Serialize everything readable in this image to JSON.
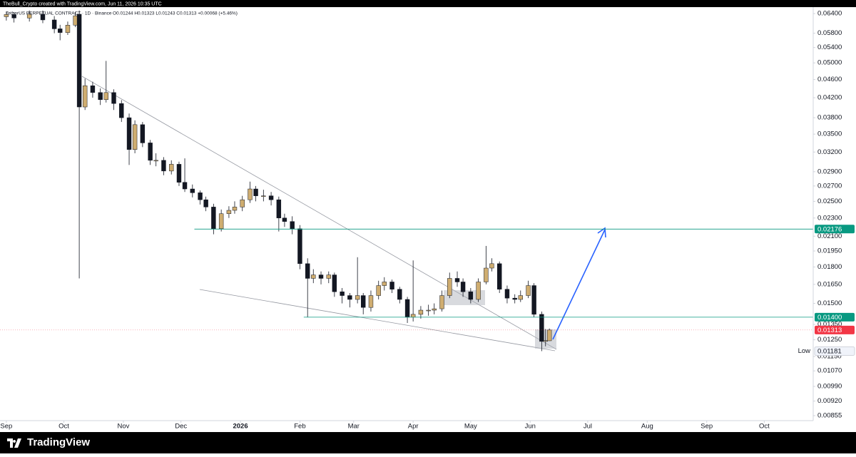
{
  "header": {
    "credit": "TheBull_Crypto created with TradingView.com, Jun 11, 2026 10:35 UTC"
  },
  "footer": {
    "brand": "TradingView"
  },
  "chart_data": {
    "type": "candlestick",
    "title": "TetherUS PERPETUAL CONTRACT · 1D · Binance",
    "legend_values": "O0.01244 H0.01323 L0.01243 C0.01313 +0.00068 (+5.46%)",
    "up_color": "#cfad70",
    "down_color": "#131722",
    "log_scale": true,
    "grid": false,
    "x": [
      0,
      4,
      12,
      19,
      25,
      28,
      32,
      36,
      38,
      41,
      45,
      49,
      52,
      56,
      60,
      64,
      67,
      71,
      75,
      78,
      82,
      86,
      90,
      93,
      97,
      101,
      104,
      108,
      112,
      116,
      119,
      123,
      127,
      130,
      134,
      138,
      142,
      145,
      149,
      153,
      157,
      160,
      164,
      168,
      171,
      175,
      179,
      183,
      186,
      190,
      194,
      197,
      201,
      205,
      209,
      212,
      216,
      220,
      223,
      227,
      231,
      235,
      238,
      242,
      246,
      250,
      253,
      257,
      261,
      265,
      268,
      272,
      275,
      279,
      281,
      283
    ],
    "open": [
      0.063,
      0.0637,
      0.0626,
      0.0638,
      0.062,
      0.0593,
      0.0582,
      0.0604,
      0.0638,
      0.0401,
      0.0446,
      0.0431,
      0.0416,
      0.0431,
      0.0408,
      0.038,
      0.0324,
      0.0367,
      0.0335,
      0.0307,
      0.0307,
      0.0291,
      0.0301,
      0.0275,
      0.0266,
      0.0261,
      0.0252,
      0.0243,
      0.0218,
      0.0235,
      0.0239,
      0.0243,
      0.0252,
      0.0266,
      0.0257,
      0.0257,
      0.0252,
      0.023,
      0.0226,
      0.0218,
      0.0183,
      0.017,
      0.0173,
      0.017,
      0.0173,
      0.0159,
      0.0156,
      0.0153,
      0.0156,
      0.0147,
      0.0156,
      0.0164,
      0.0167,
      0.0161,
      0.0153,
      0.014,
      0.0142,
      0.0145,
      0.0145,
      0.0146,
      0.0156,
      0.017,
      0.0167,
      0.0159,
      0.0153,
      0.0167,
      0.0179,
      0.0183,
      0.0161,
      0.0154,
      0.0153,
      0.0156,
      0.0164,
      0.0142,
      0.0124,
      0.01244
    ],
    "high": [
      0.0645,
      0.0645,
      0.065,
      0.065,
      0.0632,
      0.0605,
      0.0615,
      0.0645,
      0.065,
      0.0462,
      0.0455,
      0.044,
      0.0505,
      0.0438,
      0.0415,
      0.0388,
      0.0375,
      0.0372,
      0.034,
      0.0318,
      0.0312,
      0.0307,
      0.0305,
      0.031,
      0.0272,
      0.0264,
      0.0256,
      0.0247,
      0.024,
      0.0244,
      0.025,
      0.0257,
      0.0276,
      0.027,
      0.0265,
      0.0262,
      0.0256,
      0.0235,
      0.0232,
      0.0222,
      0.0188,
      0.0178,
      0.0176,
      0.0176,
      0.0175,
      0.0162,
      0.0158,
      0.0189,
      0.0158,
      0.016,
      0.0168,
      0.0171,
      0.0169,
      0.0163,
      0.0155,
      0.0186,
      0.0148,
      0.0149,
      0.015,
      0.016,
      0.0175,
      0.0176,
      0.017,
      0.0162,
      0.017,
      0.02,
      0.0188,
      0.0185,
      0.0164,
      0.0157,
      0.016,
      0.0168,
      0.0166,
      0.0144,
      0.0132,
      0.01323
    ],
    "low": [
      0.0618,
      0.0612,
      0.0615,
      0.061,
      0.058,
      0.056,
      0.0575,
      0.0598,
      0.017,
      0.0395,
      0.042,
      0.0405,
      0.041,
      0.0395,
      0.0372,
      0.03,
      0.0318,
      0.0328,
      0.03,
      0.0298,
      0.0285,
      0.0286,
      0.027,
      0.0262,
      0.0255,
      0.0246,
      0.0238,
      0.0212,
      0.0215,
      0.023,
      0.0235,
      0.0238,
      0.0248,
      0.025,
      0.025,
      0.0245,
      0.0215,
      0.022,
      0.0212,
      0.0178,
      0.014,
      0.0166,
      0.0165,
      0.0166,
      0.0155,
      0.015,
      0.0147,
      0.015,
      0.0142,
      0.0144,
      0.0153,
      0.016,
      0.0158,
      0.015,
      0.0136,
      0.0137,
      0.0139,
      0.0141,
      0.0142,
      0.0144,
      0.0154,
      0.0163,
      0.0155,
      0.015,
      0.0151,
      0.0165,
      0.0176,
      0.0158,
      0.015,
      0.015,
      0.0151,
      0.0154,
      0.014,
      0.01181,
      0.0121,
      0.01243
    ],
    "close": [
      0.0637,
      0.0626,
      0.0638,
      0.062,
      0.0593,
      0.0582,
      0.0604,
      0.0633,
      0.0401,
      0.0446,
      0.0431,
      0.0416,
      0.0431,
      0.0408,
      0.038,
      0.0324,
      0.0367,
      0.0335,
      0.0307,
      0.0307,
      0.0291,
      0.0301,
      0.0275,
      0.0266,
      0.0261,
      0.0252,
      0.0243,
      0.0218,
      0.0235,
      0.0239,
      0.0243,
      0.0252,
      0.0266,
      0.0257,
      0.0257,
      0.0252,
      0.023,
      0.0226,
      0.0218,
      0.0183,
      0.017,
      0.0173,
      0.017,
      0.0173,
      0.0159,
      0.0156,
      0.0153,
      0.0156,
      0.0147,
      0.0156,
      0.0164,
      0.0167,
      0.0161,
      0.0153,
      0.014,
      0.0142,
      0.0145,
      0.0145,
      0.0146,
      0.0156,
      0.017,
      0.0167,
      0.0159,
      0.0153,
      0.0167,
      0.0179,
      0.0183,
      0.0161,
      0.0154,
      0.0153,
      0.0156,
      0.0164,
      0.0142,
      0.0124,
      0.01245,
      0.01313
    ],
    "xlim": [
      -3.3,
      420.5
    ],
    "xticks": [
      {
        "value": 0,
        "label": "Sep"
      },
      {
        "value": 30,
        "label": "Oct"
      },
      {
        "value": 61,
        "label": "Nov"
      },
      {
        "value": 91,
        "label": "Dec"
      },
      {
        "value": 122,
        "label": "2026"
      },
      {
        "value": 153,
        "label": "Feb"
      },
      {
        "value": 181,
        "label": "Mar"
      },
      {
        "value": 212,
        "label": "Apr"
      },
      {
        "value": 242,
        "label": "May"
      },
      {
        "value": 273,
        "label": "Jun"
      },
      {
        "value": 303,
        "label": "Jul"
      },
      {
        "value": 334,
        "label": "Aug"
      },
      {
        "value": 365,
        "label": "Sep"
      },
      {
        "value": 395,
        "label": "Oct"
      }
    ],
    "ylim": [
      0.00834,
      0.0661
    ],
    "yticks": [
      {
        "value": 0.064,
        "label": "0.06400"
      },
      {
        "value": 0.058,
        "label": "0.05800"
      },
      {
        "value": 0.054,
        "label": "0.05400"
      },
      {
        "value": 0.05,
        "label": "0.05000"
      },
      {
        "value": 0.046,
        "label": "0.04600"
      },
      {
        "value": 0.042,
        "label": "0.04200"
      },
      {
        "value": 0.038,
        "label": "0.03800"
      },
      {
        "value": 0.035,
        "label": "0.03500"
      },
      {
        "value": 0.032,
        "label": "0.03200"
      },
      {
        "value": 0.029,
        "label": "0.02900"
      },
      {
        "value": 0.027,
        "label": "0.02700"
      },
      {
        "value": 0.025,
        "label": "0.02500"
      },
      {
        "value": 0.023,
        "label": "0.02300"
      },
      {
        "value": 0.021,
        "label": "0.02100"
      },
      {
        "value": 0.0195,
        "label": "0.01950"
      },
      {
        "value": 0.018,
        "label": "0.01800"
      },
      {
        "value": 0.0165,
        "label": "0.01650"
      },
      {
        "value": 0.015,
        "label": "0.01500"
      },
      {
        "value": 0.0135,
        "label": "0.01350"
      },
      {
        "value": 0.0125,
        "label": "0.01250"
      },
      {
        "value": 0.0115,
        "label": "0.01150"
      },
      {
        "value": 0.0107,
        "label": "0.01070"
      },
      {
        "value": 0.0099,
        "label": "0.00990"
      },
      {
        "value": 0.0092,
        "label": "0.00920"
      },
      {
        "value": 0.00855,
        "label": "0.00855"
      }
    ],
    "levels": [
      {
        "value": 0.02176,
        "label": "0.02176",
        "start": 98,
        "color": "#089981"
      },
      {
        "value": 0.014,
        "label": "0.01400",
        "start": 155,
        "color": "#089981"
      }
    ],
    "low_marker": {
      "text": "Low",
      "value": 0.01181,
      "label": "0.01181"
    },
    "last_price_color": "#f23645"
  }
}
